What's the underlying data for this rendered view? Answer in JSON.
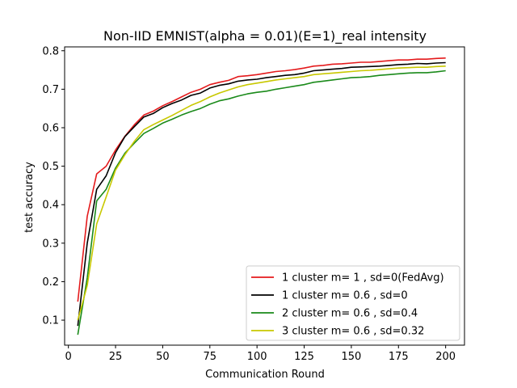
{
  "chart_data": {
    "type": "line",
    "title": "Non-IID EMNIST(alpha = 0.01)(E=1)_real intensity",
    "xlabel": "Communication Round",
    "ylabel": "test accuracy",
    "xlim": [
      -2,
      210
    ],
    "ylim": [
      0.035,
      0.81
    ],
    "xticks": [
      0,
      25,
      50,
      75,
      100,
      125,
      150,
      175,
      200
    ],
    "yticks": [
      0.1,
      0.2,
      0.3,
      0.4,
      0.5,
      0.6,
      0.7,
      0.8
    ],
    "ytick_labels": [
      "0.1",
      "0.2",
      "0.3",
      "0.4",
      "0.5",
      "0.6",
      "0.7",
      "0.8"
    ],
    "grid": false,
    "legend_position": "lower-right",
    "x": [
      5,
      10,
      15,
      20,
      25,
      30,
      35,
      40,
      45,
      50,
      55,
      60,
      65,
      70,
      75,
      80,
      85,
      90,
      95,
      100,
      105,
      110,
      115,
      120,
      125,
      130,
      135,
      140,
      145,
      150,
      155,
      160,
      165,
      170,
      175,
      180,
      185,
      190,
      195,
      200
    ],
    "series": [
      {
        "name": "1 cluster m= 1 , sd=0(FedAvg)",
        "color": "#e41a1c",
        "values": [
          0.148,
          0.37,
          0.48,
          0.5,
          0.542,
          0.578,
          0.608,
          0.633,
          0.643,
          0.657,
          0.668,
          0.68,
          0.692,
          0.7,
          0.712,
          0.718,
          0.723,
          0.733,
          0.735,
          0.738,
          0.742,
          0.746,
          0.748,
          0.751,
          0.755,
          0.76,
          0.762,
          0.765,
          0.766,
          0.768,
          0.77,
          0.77,
          0.772,
          0.774,
          0.776,
          0.776,
          0.778,
          0.778,
          0.78,
          0.781
        ]
      },
      {
        "name": "1 cluster m= 0.6 , sd=0",
        "color": "#000000",
        "values": [
          0.085,
          0.3,
          0.44,
          0.475,
          0.535,
          0.577,
          0.603,
          0.628,
          0.637,
          0.652,
          0.663,
          0.672,
          0.684,
          0.69,
          0.703,
          0.71,
          0.714,
          0.721,
          0.724,
          0.726,
          0.73,
          0.733,
          0.736,
          0.738,
          0.742,
          0.748,
          0.75,
          0.752,
          0.754,
          0.757,
          0.758,
          0.759,
          0.76,
          0.762,
          0.764,
          0.765,
          0.767,
          0.766,
          0.768,
          0.769
        ]
      },
      {
        "name": "2 cluster m= 0.6 , sd=0.4",
        "color": "#1a8a1a",
        "values": [
          0.062,
          0.21,
          0.41,
          0.44,
          0.495,
          0.534,
          0.56,
          0.585,
          0.598,
          0.612,
          0.622,
          0.633,
          0.642,
          0.65,
          0.661,
          0.67,
          0.675,
          0.682,
          0.688,
          0.692,
          0.695,
          0.7,
          0.704,
          0.708,
          0.712,
          0.718,
          0.721,
          0.724,
          0.727,
          0.73,
          0.731,
          0.733,
          0.736,
          0.738,
          0.74,
          0.742,
          0.743,
          0.743,
          0.745,
          0.748
        ]
      },
      {
        "name": "3 cluster m= 0.6 , sd=0.32",
        "color": "#c8c800",
        "values": [
          0.1,
          0.19,
          0.35,
          0.42,
          0.49,
          0.53,
          0.565,
          0.595,
          0.608,
          0.62,
          0.632,
          0.645,
          0.658,
          0.668,
          0.68,
          0.69,
          0.698,
          0.706,
          0.712,
          0.716,
          0.72,
          0.724,
          0.727,
          0.73,
          0.733,
          0.738,
          0.74,
          0.742,
          0.744,
          0.746,
          0.748,
          0.749,
          0.751,
          0.753,
          0.755,
          0.756,
          0.757,
          0.757,
          0.759,
          0.76
        ]
      }
    ]
  }
}
